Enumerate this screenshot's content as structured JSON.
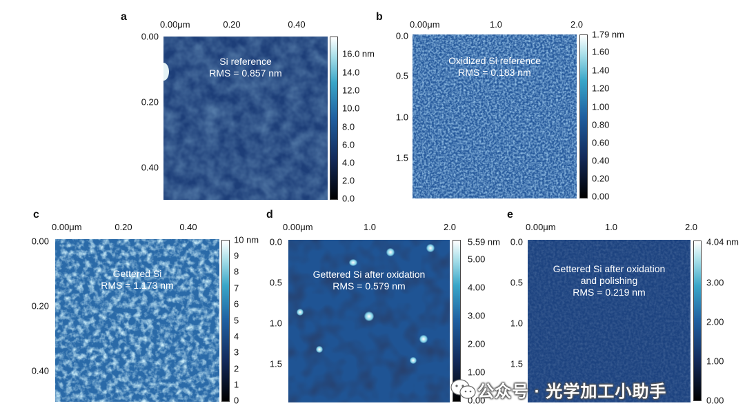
{
  "panels": {
    "a": {
      "letter": "a",
      "caption_line1": "Si reference",
      "caption_line2": "RMS = 0.857 nm",
      "xticks": [
        "0.00μm",
        "0.20",
        "0.40"
      ],
      "yticks": [
        "0.00",
        "0.20",
        "0.40"
      ],
      "cbar": [
        "16.0 nm",
        "14.0",
        "12.0",
        "10.0",
        "8.0",
        "6.0",
        "4.0",
        "2.0",
        "0.0"
      ]
    },
    "b": {
      "letter": "b",
      "caption_line1": "Oxidized Si reference",
      "caption_line2": "RMS = 0.183 nm",
      "xticks": [
        "0.00μm",
        "1.0",
        "2.0"
      ],
      "yticks": [
        "0.0",
        "0.5",
        "1.0",
        "1.5"
      ],
      "cbar": [
        "1.79 nm",
        "1.60",
        "1.40",
        "1.20",
        "1.00",
        "0.80",
        "0.60",
        "0.40",
        "0.20",
        "0.00"
      ]
    },
    "c": {
      "letter": "c",
      "caption_line1": "Gettered Si",
      "caption_line2": "RMS = 1.173 nm",
      "xticks": [
        "0.00μm",
        "0.20",
        "0.40"
      ],
      "yticks": [
        "0.00",
        "0.20",
        "0.40"
      ],
      "cbar": [
        "10 nm",
        "9",
        "8",
        "7",
        "6",
        "5",
        "4",
        "3",
        "2",
        "1",
        "0"
      ]
    },
    "d": {
      "letter": "d",
      "caption_line1": "Gettered Si after oxidation",
      "caption_line2": "RMS = 0.579 nm",
      "xticks": [
        "0.00μm",
        "1.0",
        "2.0"
      ],
      "yticks": [
        "0.0",
        "0.5",
        "1.0",
        "1.5"
      ],
      "cbar": [
        "5.59 nm",
        "5.00",
        "4.00",
        "3.00",
        "2.00",
        "1.00",
        "0.00"
      ]
    },
    "e": {
      "letter": "e",
      "caption_line1": "Gettered Si after oxidation",
      "caption_line2": "and polishing",
      "caption_line3": "RMS = 0.219 nm",
      "xticks": [
        "0.00μm",
        "1.0",
        "2.0"
      ],
      "yticks": [
        "0.0",
        "0.5",
        "1.0",
        "1.5"
      ],
      "cbar": [
        "4.04 nm",
        "3.00",
        "2.00",
        "1.00",
        "0.00"
      ]
    }
  },
  "watermark": {
    "text": "公众号 · 光学加工小助手"
  },
  "colors": {
    "bg": "#ffffff",
    "afm_dark": "#0a1230",
    "afm_mid": "#1e4f8f",
    "afm_light": "#7fd0e6"
  }
}
